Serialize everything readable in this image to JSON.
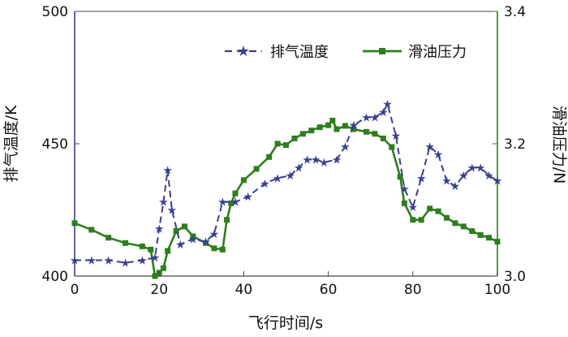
{
  "chart_data": {
    "type": "line",
    "title": "",
    "xlabel": "飞行时间/s",
    "ylabel_left": "排气温度/K",
    "ylabel_right": "滑油压力/N",
    "xlim": [
      0,
      100
    ],
    "ylim_left": [
      400,
      500
    ],
    "ylim_right": [
      3.0,
      3.4
    ],
    "x_ticks": [
      "0",
      "20",
      "40",
      "60",
      "80",
      "100"
    ],
    "y_left_ticks": [
      "400",
      "450",
      "500"
    ],
    "y_right_ticks": [
      "3.0",
      "3.2",
      "3.4"
    ],
    "legend_position": "top-right",
    "colors": {
      "temperature": "#3b3f8f",
      "pressure": "#2e7d1e",
      "axis_left": "#3b3f8f",
      "axis_right": "#2e7d1e"
    },
    "series": [
      {
        "name": "排气温度",
        "axis": "left",
        "style": "dashed, star markers",
        "points": [
          [
            0,
            406
          ],
          [
            4,
            406
          ],
          [
            8,
            406
          ],
          [
            12,
            405
          ],
          [
            16,
            406
          ],
          [
            19,
            407
          ],
          [
            20,
            418
          ],
          [
            21,
            428
          ],
          [
            22,
            440
          ],
          [
            23,
            425
          ],
          [
            25,
            412
          ],
          [
            28,
            414
          ],
          [
            31,
            413
          ],
          [
            33,
            416
          ],
          [
            35,
            428
          ],
          [
            38,
            428
          ],
          [
            41,
            430
          ],
          [
            45,
            435
          ],
          [
            48,
            437
          ],
          [
            51,
            438
          ],
          [
            53,
            441
          ],
          [
            55,
            444
          ],
          [
            57,
            444
          ],
          [
            59,
            443
          ],
          [
            62,
            444
          ],
          [
            64,
            449
          ],
          [
            66,
            457
          ],
          [
            69,
            460
          ],
          [
            71,
            460
          ],
          [
            73,
            462
          ],
          [
            74,
            465
          ],
          [
            76,
            453
          ],
          [
            78,
            433
          ],
          [
            80,
            426
          ],
          [
            82,
            437
          ],
          [
            84,
            449
          ],
          [
            86,
            446
          ],
          [
            88,
            436
          ],
          [
            90,
            434
          ],
          [
            92,
            438
          ],
          [
            94,
            441
          ],
          [
            96,
            441
          ],
          [
            98,
            438
          ],
          [
            100,
            436
          ]
        ]
      },
      {
        "name": "滑油压力",
        "axis": "right",
        "style": "solid, square markers",
        "points": [
          [
            0,
            3.08
          ],
          [
            4,
            3.07
          ],
          [
            8,
            3.058
          ],
          [
            12,
            3.05
          ],
          [
            16,
            3.045
          ],
          [
            18,
            3.04
          ],
          [
            19,
            3.0
          ],
          [
            20,
            3.005
          ],
          [
            21,
            3.012
          ],
          [
            22,
            3.038
          ],
          [
            24,
            3.068
          ],
          [
            26,
            3.075
          ],
          [
            28,
            3.06
          ],
          [
            31,
            3.05
          ],
          [
            33,
            3.042
          ],
          [
            35,
            3.04
          ],
          [
            36,
            3.085
          ],
          [
            37,
            3.11
          ],
          [
            38,
            3.125
          ],
          [
            40,
            3.145
          ],
          [
            43,
            3.162
          ],
          [
            46,
            3.18
          ],
          [
            48,
            3.2
          ],
          [
            50,
            3.198
          ],
          [
            52,
            3.208
          ],
          [
            54,
            3.215
          ],
          [
            56,
            3.22
          ],
          [
            58,
            3.225
          ],
          [
            60,
            3.228
          ],
          [
            61,
            3.235
          ],
          [
            62,
            3.222
          ],
          [
            64,
            3.227
          ],
          [
            66,
            3.222
          ],
          [
            69,
            3.218
          ],
          [
            71,
            3.215
          ],
          [
            73,
            3.208
          ],
          [
            75,
            3.195
          ],
          [
            77,
            3.15
          ],
          [
            78,
            3.11
          ],
          [
            80,
            3.085
          ],
          [
            82,
            3.085
          ],
          [
            84,
            3.102
          ],
          [
            86,
            3.098
          ],
          [
            88,
            3.088
          ],
          [
            90,
            3.08
          ],
          [
            92,
            3.075
          ],
          [
            94,
            3.068
          ],
          [
            96,
            3.062
          ],
          [
            98,
            3.058
          ],
          [
            100,
            3.052
          ]
        ]
      }
    ]
  }
}
